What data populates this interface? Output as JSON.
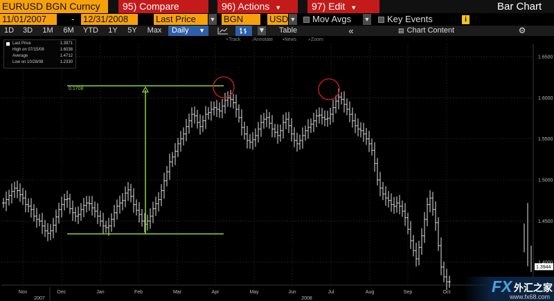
{
  "header": {
    "security": "EURUSD BGN Curncy",
    "compare": "95) Compare",
    "actions": "96) Actions",
    "edit": "97) Edit",
    "title": "Bar Chart"
  },
  "controls": {
    "start_date": "11/01/2007",
    "separator": "-",
    "end_date": "12/31/2008",
    "field": "Last Price",
    "source": "BGN",
    "currency": "USD",
    "mov_avgs": "Mov Avgs",
    "key_events": "Key Events",
    "info": "i"
  },
  "toolbar": {
    "periods": [
      "1D",
      "3D",
      "1M",
      "6M",
      "YTD",
      "1Y",
      "5Y",
      "Max"
    ],
    "frequency": "Daily",
    "table": "Table",
    "collapse": "«",
    "chart_content": "Chart Content"
  },
  "tools": {
    "track": "Track",
    "annotate": "Annotate",
    "news": "News",
    "zoom": "Zoom"
  },
  "legend": {
    "last_price_label": "Last Price",
    "last_price": "1.3971",
    "high_label": "High on 07/15/08",
    "high": "1.6038",
    "average_label": "Average",
    "average": "1.4712",
    "low_label": "Low on 10/28/08",
    "low": "1.2330"
  },
  "annotations": {
    "range_label": "0.1708"
  },
  "watermark": {
    "fx": "FX",
    "cn": "外汇之家",
    "url": "www.fx68.com"
  },
  "chart_data": {
    "type": "bar",
    "title": "",
    "xlabel": "",
    "ylabel": "",
    "y_tick_labels": [
      "1.6500",
      "1.6000",
      "1.5500",
      "1.5000",
      "1.4500",
      "1.4000"
    ],
    "y_ticks": [
      1.65,
      1.6,
      1.55,
      1.5,
      1.45,
      1.4
    ],
    "ylim": [
      1.372,
      1.666
    ],
    "month_labels": [
      "Nov",
      "Dec",
      "Jan",
      "Feb",
      "Mar",
      "Apr",
      "May",
      "Jun",
      "Jul",
      "Aug",
      "Sep",
      "Oct"
    ],
    "year_labels": [
      "2007",
      "2008"
    ],
    "last_price_marker": "1.3944",
    "grid": true,
    "legend_position": "top-left",
    "series": [
      {
        "values": [
          1.472,
          1.476,
          1.481,
          1.486,
          1.49,
          1.487,
          1.482,
          1.478,
          1.47,
          1.468,
          1.464,
          1.456,
          1.452,
          1.45,
          1.444,
          1.438,
          1.435,
          1.438,
          1.445,
          1.455,
          1.464,
          1.47,
          1.476,
          1.477,
          1.465,
          1.46,
          1.456,
          1.458,
          1.464,
          1.469,
          1.472,
          1.471,
          1.466,
          1.462,
          1.456,
          1.45,
          1.444,
          1.442,
          1.444,
          1.452,
          1.46,
          1.468,
          1.472,
          1.475,
          1.484,
          1.488,
          1.48,
          1.47,
          1.463,
          1.458,
          1.45,
          1.446,
          1.45,
          1.456,
          1.465,
          1.471,
          1.476,
          1.487,
          1.499,
          1.51,
          1.522,
          1.528,
          1.535,
          1.544,
          1.55,
          1.556,
          1.565,
          1.572,
          1.58,
          1.578,
          1.57,
          1.565,
          1.572,
          1.58,
          1.582,
          1.586,
          1.588,
          1.586,
          1.584,
          1.59,
          1.597,
          1.6,
          1.598,
          1.594,
          1.586,
          1.576,
          1.564,
          1.556,
          1.548,
          1.546,
          1.549,
          1.554,
          1.562,
          1.57,
          1.574,
          1.576,
          1.569,
          1.562,
          1.558,
          1.554,
          1.56,
          1.57,
          1.574,
          1.566,
          1.556,
          1.548,
          1.544,
          1.548,
          1.554,
          1.56,
          1.564,
          1.568,
          1.572,
          1.578,
          1.579,
          1.576,
          1.574,
          1.575,
          1.58,
          1.588,
          1.596,
          1.601,
          1.598,
          1.592,
          1.586,
          1.58,
          1.572,
          1.566,
          1.562,
          1.56,
          1.556,
          1.55,
          1.544,
          1.536,
          1.52,
          1.5,
          1.49,
          1.483,
          1.478,
          1.475,
          1.47,
          1.468,
          1.472,
          1.468,
          1.462,
          1.454,
          1.44,
          1.426,
          1.414,
          1.404,
          1.418,
          1.432,
          1.452,
          1.47,
          1.478,
          1.464,
          1.448,
          1.42,
          1.394,
          1.382,
          1.376,
          1.376,
          1.376,
          1.376,
          1.376,
          1.376,
          1.376,
          1.376,
          1.376,
          1.376
        ]
      }
    ]
  }
}
